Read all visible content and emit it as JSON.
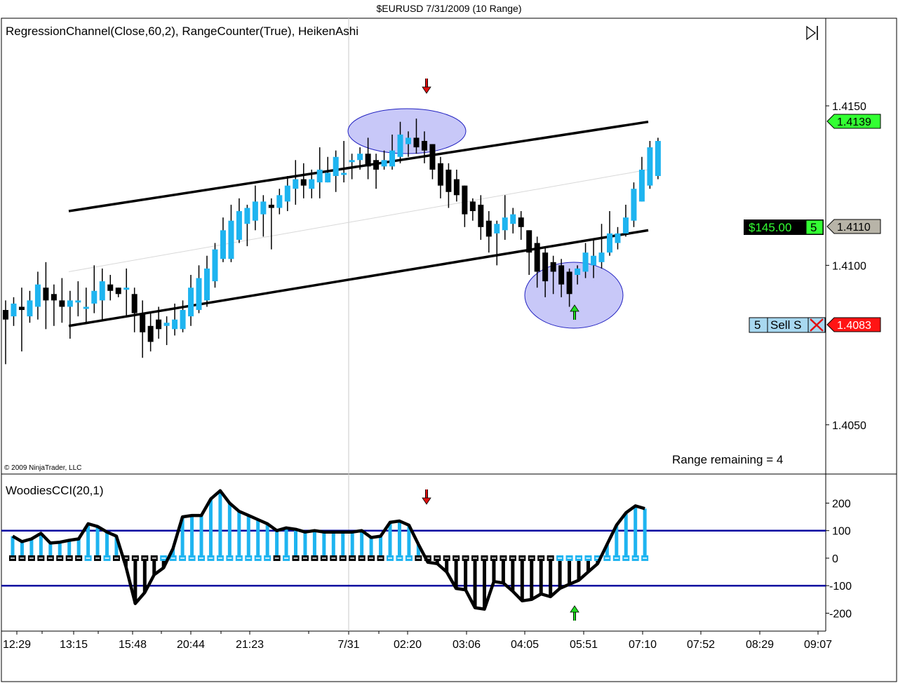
{
  "window": {
    "title": "$EURUSD  7/31/2009 (10 Range)"
  },
  "price_panel": {
    "indicator_title": "RegressionChannel(Close,60,2), RangeCounter(True), HeikenAshi",
    "copyright": "© 2009 NinjaTrader, LLC",
    "range_remaining": "Range remaining = 4",
    "last_price_tag": "1.4139",
    "position_pnl": "$145.00",
    "position_qty": "5",
    "position_price_tag": "1.4110",
    "order_qty": "5",
    "order_label": "Sell S",
    "order_price_tag": "1.4083",
    "colors": {
      "up_bar": "#1eb4f0",
      "down_bar": "#000000",
      "last_tag": "#33ff33",
      "position_tag": "#b8b4a8",
      "order_tag": "#ff1414",
      "ellipse": "#c8c8f8"
    }
  },
  "cci_panel": {
    "title": "WoodiesCCI(20,1)",
    "colors": {
      "histogram_up": "#1eb4f0",
      "histogram_down": "#000000",
      "levels": "#0000a0"
    }
  },
  "x_axis": {
    "tick_labels": [
      "12:29",
      "13:15",
      "15:48",
      "20:44",
      "21:23",
      "7/31",
      "02:20",
      "03:06",
      "04:05",
      "05:51",
      "07:10",
      "07:52",
      "08:29",
      "09:07"
    ]
  },
  "chart_data": [
    {
      "type": "candlestick",
      "style": "HeikenAshi",
      "symbol": "$EURUSD",
      "ylim": [
        1.4035,
        1.417
      ],
      "y_ticks": [
        "1.4150",
        "1.4100",
        "1.4050"
      ],
      "bars": [
        {
          "o": 1.4086,
          "c": 1.4083,
          "h": 1.4089,
          "l": 1.4069
        },
        {
          "o": 1.4084,
          "c": 1.4088,
          "h": 1.409,
          "l": 1.4081
        },
        {
          "o": 1.4087,
          "c": 1.4086,
          "h": 1.4093,
          "l": 1.4073
        },
        {
          "o": 1.4084,
          "c": 1.4089,
          "h": 1.4092,
          "l": 1.4082
        },
        {
          "o": 1.4087,
          "c": 1.4094,
          "h": 1.4098,
          "l": 1.4083
        },
        {
          "o": 1.4093,
          "c": 1.4089,
          "h": 1.4101,
          "l": 1.408
        },
        {
          "o": 1.4091,
          "c": 1.4089,
          "h": 1.4094,
          "l": 1.4081
        },
        {
          "o": 1.4089,
          "c": 1.4087,
          "h": 1.4096,
          "l": 1.4082
        },
        {
          "o": 1.4087,
          "c": 1.4089,
          "h": 1.4092,
          "l": 1.4077
        },
        {
          "o": 1.4089,
          "c": 1.4089,
          "h": 1.4095,
          "l": 1.4084
        },
        {
          "o": 1.4087,
          "c": 1.4087,
          "h": 1.4093,
          "l": 1.4082
        },
        {
          "o": 1.4088,
          "c": 1.4092,
          "h": 1.41,
          "l": 1.4085
        },
        {
          "o": 1.4089,
          "c": 1.4095,
          "h": 1.4099,
          "l": 1.4083
        },
        {
          "o": 1.4094,
          "c": 1.4092,
          "h": 1.4097,
          "l": 1.4089
        },
        {
          "o": 1.4093,
          "c": 1.4091,
          "h": 1.4093,
          "l": 1.409
        },
        {
          "o": 1.4093,
          "c": 1.4093,
          "h": 1.4099,
          "l": 1.4084
        },
        {
          "o": 1.4091,
          "c": 1.4085,
          "h": 1.4093,
          "l": 1.4079
        },
        {
          "o": 1.4085,
          "c": 1.4079,
          "h": 1.4089,
          "l": 1.4071
        },
        {
          "o": 1.4081,
          "c": 1.4076,
          "h": 1.4085,
          "l": 1.4073
        },
        {
          "o": 1.4083,
          "c": 1.408,
          "h": 1.4087,
          "l": 1.4077
        },
        {
          "o": 1.4081,
          "c": 1.4082,
          "h": 1.4084,
          "l": 1.4075
        },
        {
          "o": 1.408,
          "c": 1.4083,
          "h": 1.4088,
          "l": 1.4078
        },
        {
          "o": 1.408,
          "c": 1.4086,
          "h": 1.4089,
          "l": 1.4079
        },
        {
          "o": 1.4084,
          "c": 1.4093,
          "h": 1.4097,
          "l": 1.4081
        },
        {
          "o": 1.4086,
          "c": 1.4096,
          "h": 1.41,
          "l": 1.4085
        },
        {
          "o": 1.4089,
          "c": 1.4099,
          "h": 1.4103,
          "l": 1.4087
        },
        {
          "o": 1.4095,
          "c": 1.4105,
          "h": 1.4107,
          "l": 1.4093
        },
        {
          "o": 1.4102,
          "c": 1.4111,
          "h": 1.4115,
          "l": 1.4101
        },
        {
          "o": 1.4102,
          "c": 1.4114,
          "h": 1.4119,
          "l": 1.4101
        },
        {
          "o": 1.4108,
          "c": 1.4117,
          "h": 1.4121,
          "l": 1.4107
        },
        {
          "o": 1.4113,
          "c": 1.4118,
          "h": 1.4119,
          "l": 1.4106
        },
        {
          "o": 1.4114,
          "c": 1.412,
          "h": 1.4125,
          "l": 1.4111
        },
        {
          "o": 1.4116,
          "c": 1.412,
          "h": 1.4122,
          "l": 1.4109
        },
        {
          "o": 1.4119,
          "c": 1.4118,
          "h": 1.4121,
          "l": 1.4105
        },
        {
          "o": 1.4118,
          "c": 1.4122,
          "h": 1.4124,
          "l": 1.4116
        },
        {
          "o": 1.412,
          "c": 1.4125,
          "h": 1.4128,
          "l": 1.4117
        },
        {
          "o": 1.4124,
          "c": 1.4127,
          "h": 1.4133,
          "l": 1.4119
        },
        {
          "o": 1.4127,
          "c": 1.4125,
          "h": 1.4132,
          "l": 1.4121
        },
        {
          "o": 1.4124,
          "c": 1.4127,
          "h": 1.413,
          "l": 1.4121
        },
        {
          "o": 1.4126,
          "c": 1.413,
          "h": 1.4137,
          "l": 1.4121
        },
        {
          "o": 1.4126,
          "c": 1.4129,
          "h": 1.4134,
          "l": 1.4126
        },
        {
          "o": 1.4128,
          "c": 1.4134,
          "h": 1.4136,
          "l": 1.4123
        },
        {
          "o": 1.4129,
          "c": 1.4129,
          "h": 1.4139,
          "l": 1.4126
        },
        {
          "o": 1.4133,
          "c": 1.4133,
          "h": 1.4135,
          "l": 1.4127
        },
        {
          "o": 1.4133,
          "c": 1.4135,
          "h": 1.4137,
          "l": 1.413
        },
        {
          "o": 1.4135,
          "c": 1.4131,
          "h": 1.414,
          "l": 1.4127
        },
        {
          "o": 1.4133,
          "c": 1.413,
          "h": 1.4135,
          "l": 1.4124
        },
        {
          "o": 1.4131,
          "c": 1.4133,
          "h": 1.4136,
          "l": 1.413
        },
        {
          "o": 1.4131,
          "c": 1.4136,
          "h": 1.4141,
          "l": 1.413
        },
        {
          "o": 1.4134,
          "c": 1.4141,
          "h": 1.4145,
          "l": 1.4132
        },
        {
          "o": 1.4138,
          "c": 1.414,
          "h": 1.4142,
          "l": 1.4134
        },
        {
          "o": 1.414,
          "c": 1.4137,
          "h": 1.4146,
          "l": 1.4135
        },
        {
          "o": 1.4139,
          "c": 1.4136,
          "h": 1.4142,
          "l": 1.4132
        },
        {
          "o": 1.4138,
          "c": 1.413,
          "h": 1.4138,
          "l": 1.4127
        },
        {
          "o": 1.4132,
          "c": 1.4125,
          "h": 1.4134,
          "l": 1.4121
        },
        {
          "o": 1.413,
          "c": 1.4123,
          "h": 1.4132,
          "l": 1.4118
        },
        {
          "o": 1.4127,
          "c": 1.4122,
          "h": 1.413,
          "l": 1.412
        },
        {
          "o": 1.4125,
          "c": 1.4116,
          "h": 1.4125,
          "l": 1.4112
        },
        {
          "o": 1.412,
          "c": 1.4117,
          "h": 1.4121,
          "l": 1.4114
        },
        {
          "o": 1.4119,
          "c": 1.4112,
          "h": 1.4122,
          "l": 1.4108
        },
        {
          "o": 1.4114,
          "c": 1.4109,
          "h": 1.4117,
          "l": 1.4104
        },
        {
          "o": 1.411,
          "c": 1.4113,
          "h": 1.4114,
          "l": 1.41
        },
        {
          "o": 1.4111,
          "c": 1.4115,
          "h": 1.4122,
          "l": 1.4108
        },
        {
          "o": 1.4113,
          "c": 1.4116,
          "h": 1.4118,
          "l": 1.411
        },
        {
          "o": 1.4115,
          "c": 1.4112,
          "h": 1.4117,
          "l": 1.4108
        },
        {
          "o": 1.4111,
          "c": 1.4104,
          "h": 1.4111,
          "l": 1.4097
        },
        {
          "o": 1.4107,
          "c": 1.4098,
          "h": 1.4109,
          "l": 1.4093
        },
        {
          "o": 1.4104,
          "c": 1.4095,
          "h": 1.4106,
          "l": 1.409
        },
        {
          "o": 1.4101,
          "c": 1.4098,
          "h": 1.4103,
          "l": 1.4091
        },
        {
          "o": 1.41,
          "c": 1.4094,
          "h": 1.4102,
          "l": 1.409
        },
        {
          "o": 1.4098,
          "c": 1.4091,
          "h": 1.4099,
          "l": 1.4087
        },
        {
          "o": 1.4097,
          "c": 1.4099,
          "h": 1.41,
          "l": 1.4094
        },
        {
          "o": 1.4098,
          "c": 1.4104,
          "h": 1.4107,
          "l": 1.4096
        },
        {
          "o": 1.41,
          "c": 1.4103,
          "h": 1.4108,
          "l": 1.4096
        },
        {
          "o": 1.4101,
          "c": 1.4104,
          "h": 1.4113,
          "l": 1.4099
        },
        {
          "o": 1.4104,
          "c": 1.411,
          "h": 1.4117,
          "l": 1.4103
        },
        {
          "o": 1.4107,
          "c": 1.411,
          "h": 1.4112,
          "l": 1.4105
        },
        {
          "o": 1.411,
          "c": 1.4115,
          "h": 1.4119,
          "l": 1.4109
        },
        {
          "o": 1.4114,
          "c": 1.4124,
          "h": 1.4126,
          "l": 1.4112
        },
        {
          "o": 1.412,
          "c": 1.413,
          "h": 1.4134,
          "l": 1.412
        },
        {
          "o": 1.4125,
          "c": 1.4137,
          "h": 1.4139,
          "l": 1.4124
        },
        {
          "o": 1.4128,
          "c": 1.4139,
          "h": 1.414,
          "l": 1.4127
        }
      ],
      "regression_channel": {
        "middle": [
          1.4098,
          1.413
        ],
        "upper": [
          1.4117,
          1.4145
        ],
        "lower": [
          1.4081,
          1.4111
        ]
      }
    },
    {
      "type": "line",
      "name": "WoodiesCCI(20,1)",
      "ylim": [
        -260,
        270
      ],
      "y_ticks": [
        "200",
        "100",
        "0",
        "-100",
        "-200"
      ],
      "levels": [
        100,
        0,
        -100
      ],
      "cci": [
        80,
        60,
        70,
        90,
        55,
        58,
        65,
        70,
        125,
        115,
        95,
        80,
        -30,
        -165,
        -125,
        -60,
        -35,
        35,
        150,
        155,
        155,
        215,
        245,
        200,
        170,
        155,
        140,
        125,
        100,
        110,
        105,
        95,
        100,
        95,
        95,
        95,
        95,
        100,
        75,
        80,
        130,
        135,
        120,
        50,
        -15,
        -20,
        -50,
        -110,
        -115,
        -180,
        -185,
        -85,
        -90,
        -120,
        -155,
        -150,
        -130,
        -140,
        -110,
        -95,
        -80,
        -50,
        -20,
        50,
        120,
        165,
        190,
        180
      ],
      "histogram": [
        80,
        60,
        70,
        90,
        55,
        58,
        65,
        70,
        125,
        115,
        95,
        80,
        -30,
        -165,
        -125,
        -60,
        -35,
        35,
        150,
        155,
        155,
        215,
        245,
        200,
        170,
        155,
        140,
        125,
        100,
        110,
        105,
        95,
        100,
        95,
        95,
        95,
        95,
        100,
        75,
        80,
        130,
        135,
        120,
        50,
        -15,
        -20,
        -50,
        -110,
        -115,
        -180,
        -185,
        -85,
        -90,
        -120,
        -155,
        -150,
        -130,
        -140,
        -110,
        -95,
        -80,
        -50,
        -20,
        50,
        120,
        165,
        190,
        180
      ],
      "zero_line_up": [
        false,
        false,
        false,
        false,
        false,
        false,
        false,
        false,
        true,
        false,
        true,
        false,
        false,
        false,
        false,
        false,
        true,
        true,
        true,
        true,
        true,
        true,
        true,
        true,
        true,
        true,
        true,
        true,
        false,
        true,
        false,
        false,
        false,
        false,
        false,
        false,
        false,
        false,
        false,
        false,
        true,
        true,
        true,
        false,
        false,
        false,
        false,
        false,
        false,
        false,
        false,
        false,
        false,
        false,
        false,
        false,
        false,
        false,
        true,
        true,
        true,
        true,
        true,
        true,
        true,
        true,
        true,
        true
      ]
    }
  ]
}
